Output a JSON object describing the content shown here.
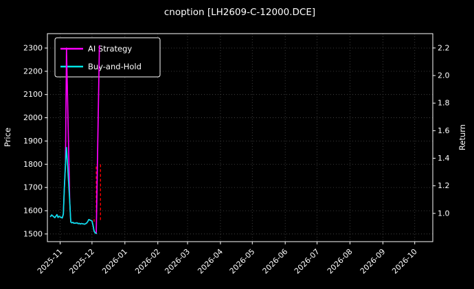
{
  "colors": {
    "background": "#000000",
    "text": "#ffffff",
    "frame": "#ffffff",
    "grid": "#4d4d4d",
    "ai_strategy": "#ff00ff",
    "buy_and_hold": "#00e5e6",
    "trade_mark": "#ff0000"
  },
  "chart_data": {
    "type": "line",
    "title": "cnoption [LH2609-C-12000.DCE]",
    "xlabel": "",
    "ylabel_left": "Price",
    "ylabel_right": "Return",
    "grid": true,
    "xlim": [
      "2025-10-20",
      "2026-10-18"
    ],
    "ylim_left": [
      1467,
      2362
    ],
    "ylim_right": [
      0.795,
      2.304
    ],
    "left_ticks": [
      1500,
      1600,
      1700,
      1800,
      1900,
      2000,
      2100,
      2200,
      2300
    ],
    "right_ticks": [
      1.0,
      1.2,
      1.4,
      1.6,
      1.8,
      2.0,
      2.2
    ],
    "x_tick_labels": [
      "2025-11",
      "2025-12",
      "2026-01",
      "2026-02",
      "2026-03",
      "2026-04",
      "2026-05",
      "2026-06",
      "2026-07",
      "2026-08",
      "2026-09",
      "2026-10"
    ],
    "legend": {
      "position": "upper-left",
      "items": [
        {
          "label": "AI Strategy",
          "color": "#ff00ff"
        },
        {
          "label": "Buy-and-Hold",
          "color": "#00e5e6"
        }
      ]
    },
    "series": [
      {
        "name": "AI Strategy",
        "color": "#ff00ff",
        "axis": "left",
        "points": [
          [
            "2025-10-23",
            1575
          ],
          [
            "2025-10-24",
            1582
          ],
          [
            "2025-10-27",
            1570
          ],
          [
            "2025-10-28",
            1577
          ],
          [
            "2025-10-29",
            1583
          ],
          [
            "2025-10-30",
            1571
          ],
          [
            "2025-10-31",
            1576
          ],
          [
            "2025-11-03",
            1569
          ],
          [
            "2025-11-04",
            1585
          ],
          [
            "2025-11-05",
            1700
          ],
          [
            "2025-11-06",
            1800
          ],
          [
            "2025-11-07",
            2300
          ],
          [
            "2025-11-10",
            1640
          ],
          [
            "2025-11-11",
            1552
          ],
          [
            "2025-11-12",
            1548
          ],
          [
            "2025-11-13",
            1550
          ],
          [
            "2025-11-14",
            1546
          ],
          [
            "2025-11-17",
            1548
          ],
          [
            "2025-11-18",
            1544
          ],
          [
            "2025-11-19",
            1546
          ],
          [
            "2025-11-20",
            1543
          ],
          [
            "2025-11-21",
            1545
          ],
          [
            "2025-11-24",
            1542
          ],
          [
            "2025-11-25",
            1544
          ],
          [
            "2025-11-26",
            1547
          ],
          [
            "2025-11-27",
            1553
          ],
          [
            "2025-11-28",
            1562
          ],
          [
            "2025-12-01",
            1556
          ],
          [
            "2025-12-02",
            1536
          ],
          [
            "2025-12-03",
            1512
          ],
          [
            "2025-12-04",
            1505
          ],
          [
            "2025-12-05",
            1502
          ],
          [
            "2025-12-08",
            2310
          ]
        ]
      },
      {
        "name": "Buy-and-Hold",
        "color": "#00e5e6",
        "axis": "left",
        "points": [
          [
            "2025-10-23",
            1575
          ],
          [
            "2025-10-24",
            1582
          ],
          [
            "2025-10-27",
            1570
          ],
          [
            "2025-10-28",
            1577
          ],
          [
            "2025-10-29",
            1583
          ],
          [
            "2025-10-30",
            1571
          ],
          [
            "2025-10-31",
            1576
          ],
          [
            "2025-11-03",
            1569
          ],
          [
            "2025-11-04",
            1585
          ],
          [
            "2025-11-05",
            1700
          ],
          [
            "2025-11-06",
            1800
          ],
          [
            "2025-11-07",
            1872
          ],
          [
            "2025-11-10",
            1640
          ],
          [
            "2025-11-11",
            1552
          ],
          [
            "2025-11-12",
            1548
          ],
          [
            "2025-11-13",
            1550
          ],
          [
            "2025-11-14",
            1546
          ],
          [
            "2025-11-17",
            1548
          ],
          [
            "2025-11-18",
            1544
          ],
          [
            "2025-11-19",
            1546
          ],
          [
            "2025-11-20",
            1543
          ],
          [
            "2025-11-21",
            1545
          ],
          [
            "2025-11-24",
            1542
          ],
          [
            "2025-11-25",
            1544
          ],
          [
            "2025-11-26",
            1547
          ],
          [
            "2025-11-27",
            1553
          ],
          [
            "2025-11-28",
            1562
          ],
          [
            "2025-12-01",
            1556
          ],
          [
            "2025-12-02",
            1536
          ],
          [
            "2025-12-03",
            1512
          ],
          [
            "2025-12-04",
            1505
          ],
          [
            "2025-12-05",
            1502
          ]
        ]
      }
    ],
    "trade_marks": [
      {
        "date": "2025-12-03",
        "low": 1552,
        "high": 1574
      },
      {
        "date": "2025-12-05",
        "low": 1592,
        "high": 1800
      },
      {
        "date": "2025-12-09",
        "low": 1560,
        "high": 1805
      }
    ]
  }
}
